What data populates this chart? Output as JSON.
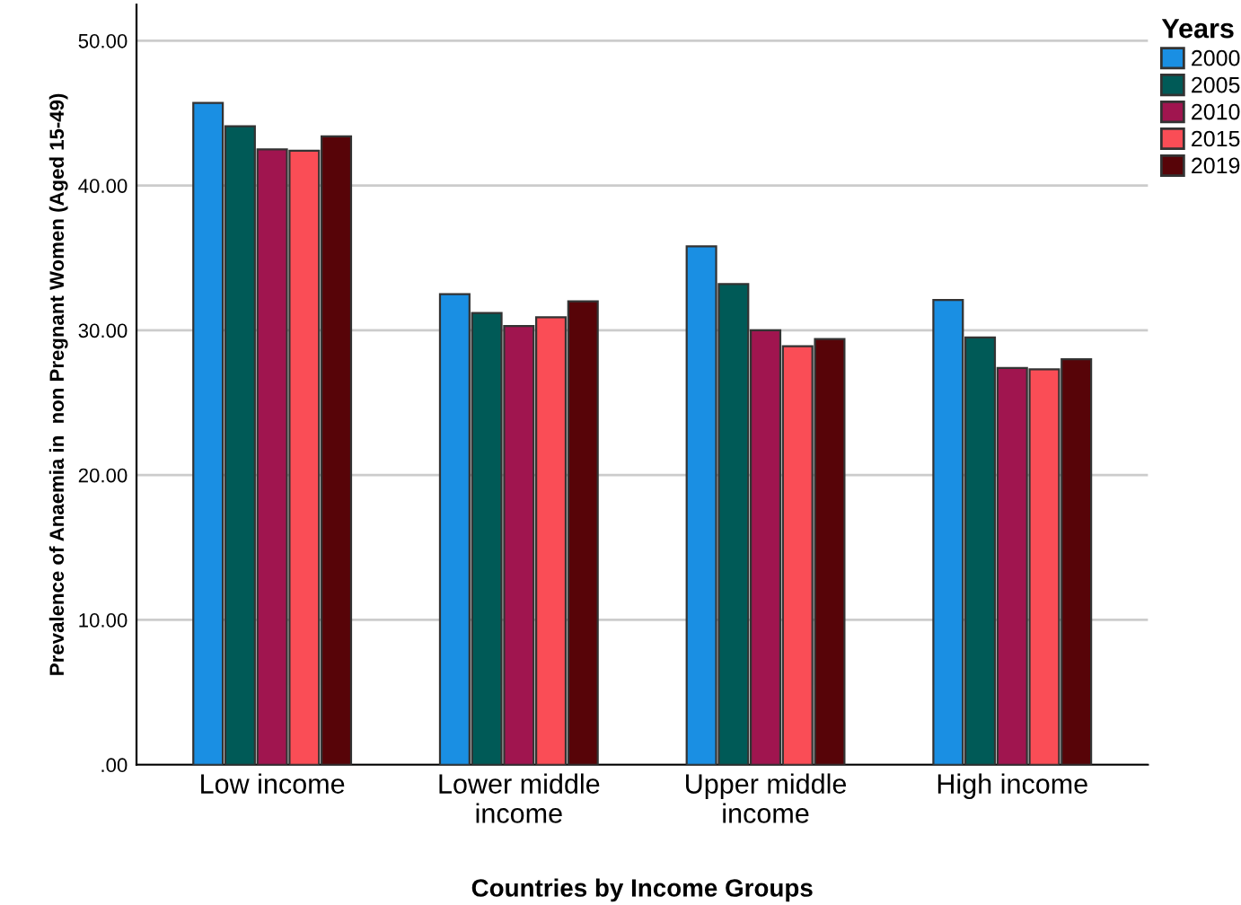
{
  "chart_data": {
    "type": "bar",
    "xlabel": "Countries by Income Groups",
    "ylabel": "Prevalence of Anaemia in  non Pregnant Women (Aged 15-49)",
    "legend_title": "Years",
    "categories": [
      "Low income",
      "Lower middle\nincome",
      "Upper middle\nincome",
      "High income"
    ],
    "series": [
      {
        "name": "2000",
        "color": "#1a8fe3",
        "values": [
          45.7,
          32.5,
          35.8,
          32.1
        ]
      },
      {
        "name": "2005",
        "color": "#005a57",
        "values": [
          44.1,
          31.2,
          33.2,
          29.5
        ]
      },
      {
        "name": "2010",
        "color": "#a0154f",
        "values": [
          42.5,
          30.3,
          30.0,
          27.4
        ]
      },
      {
        "name": "2015",
        "color": "#fa4d56",
        "values": [
          42.4,
          30.9,
          28.9,
          27.3
        ]
      },
      {
        "name": "2019",
        "color": "#570408",
        "values": [
          43.4,
          32.0,
          29.4,
          28.0
        ]
      }
    ],
    "ylim": [
      0,
      52.5
    ],
    "yticks": [
      {
        "value": 0,
        "label": ".00"
      },
      {
        "value": 10,
        "label": "10.00"
      },
      {
        "value": 20,
        "label": "20.00"
      },
      {
        "value": 30,
        "label": "30.00"
      },
      {
        "value": 40,
        "label": "40.00"
      },
      {
        "value": 50,
        "label": "50.00"
      }
    ],
    "grid": "y",
    "legend": "top right"
  }
}
